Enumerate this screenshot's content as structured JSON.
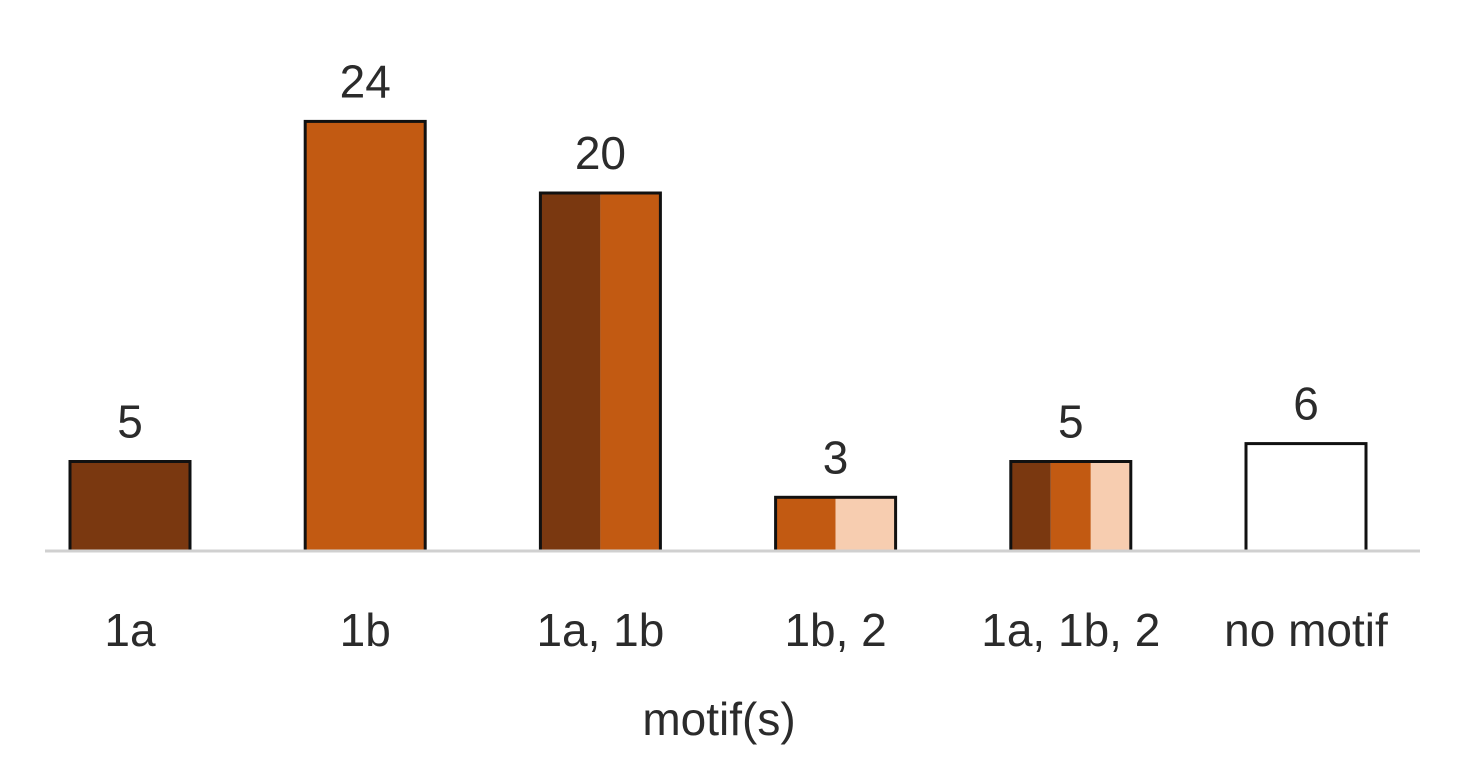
{
  "chart_data": {
    "type": "bar",
    "categories": [
      "1a",
      "1b",
      "1a, 1b",
      "1b, 2",
      "1a, 1b, 2",
      "no motif"
    ],
    "values": [
      5,
      24,
      20,
      3,
      5,
      6
    ],
    "segments": [
      [
        "1a"
      ],
      [
        "1b"
      ],
      [
        "1a",
        "1b"
      ],
      [
        "1b",
        "2"
      ],
      [
        "1a",
        "1b",
        "2"
      ],
      []
    ],
    "motif_colors": {
      "1a": "#7a3810",
      "1b": "#c25a12",
      "2": "#f7cdb0"
    },
    "no_motif_color": "#ffffff",
    "xlabel": "motif(s)",
    "ylabel": "",
    "ylim": [
      0,
      24
    ],
    "grid": false,
    "legend": "none"
  }
}
